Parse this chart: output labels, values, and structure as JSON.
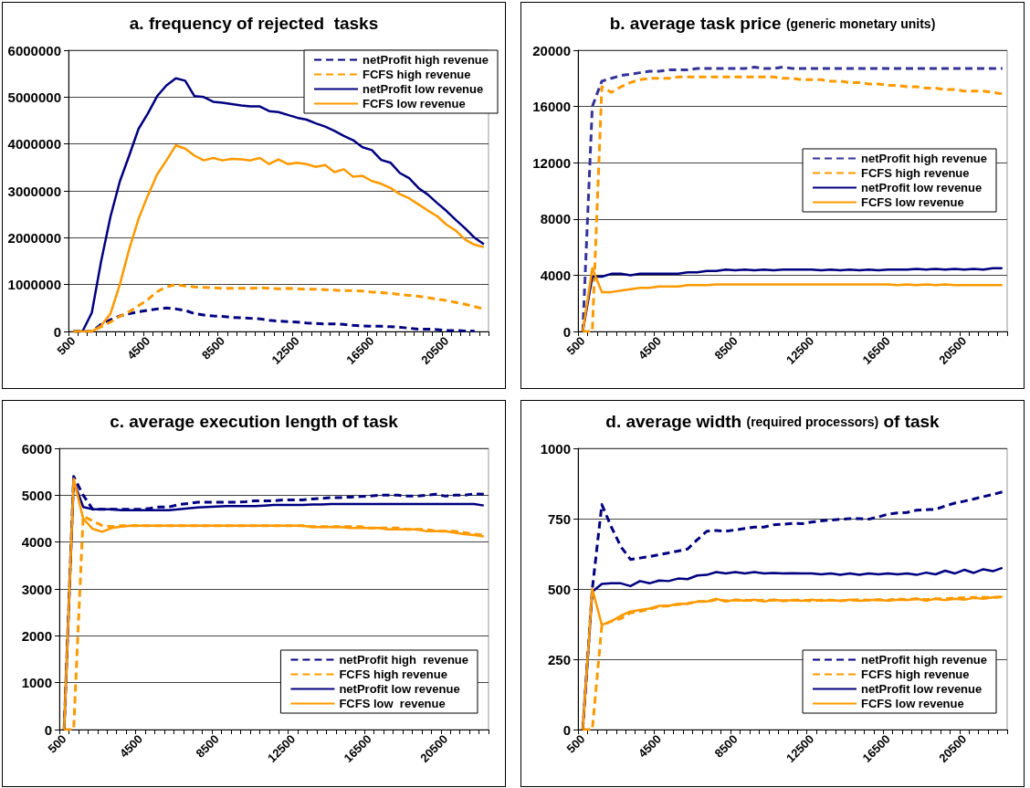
{
  "chart_data": [
    {
      "type": "line",
      "title": "a. frequency of rejected  tasks",
      "categories": [
        "500",
        null,
        null,
        null,
        null,
        null,
        null,
        null,
        "4500",
        null,
        null,
        null,
        null,
        null,
        null,
        null,
        "8500",
        null,
        null,
        null,
        null,
        null,
        null,
        null,
        "12500",
        null,
        null,
        null,
        null,
        null,
        null,
        null,
        "16500",
        null,
        null,
        null,
        null,
        null,
        null,
        null,
        "20500",
        null,
        null,
        null,
        null
      ],
      "ylim": [
        0,
        6000000
      ],
      "yticks": [
        0,
        1000000,
        2000000,
        3000000,
        4000000,
        5000000,
        6000000
      ],
      "grid": "y",
      "legend": "top right",
      "series": [
        {
          "name": "netProfit high revenue",
          "color": "#000080",
          "line_style": "dashed",
          "values": [
            0,
            0,
            0,
            150000,
            250000,
            330000,
            380000,
            420000,
            450000,
            480000,
            500000,
            480000,
            450000,
            380000,
            350000,
            330000,
            320000,
            300000,
            290000,
            280000,
            270000,
            240000,
            220000,
            210000,
            200000,
            180000,
            170000,
            160000,
            160000,
            150000,
            130000,
            120000,
            110000,
            110000,
            100000,
            90000,
            70000,
            50000,
            50000,
            40000,
            20000,
            20000,
            10000,
            10000,
            null
          ]
        },
        {
          "name": "FCFS high revenue",
          "color": "#ff9900",
          "line_style": "dashed",
          "values": [
            0,
            0,
            0,
            100000,
            200000,
            320000,
            420000,
            550000,
            680000,
            850000,
            950000,
            1000000,
            970000,
            950000,
            940000,
            930000,
            920000,
            920000,
            920000,
            920000,
            930000,
            920000,
            910000,
            920000,
            910000,
            900000,
            900000,
            890000,
            880000,
            870000,
            870000,
            860000,
            840000,
            830000,
            810000,
            790000,
            770000,
            750000,
            720000,
            690000,
            660000,
            620000,
            580000,
            530000,
            480000
          ]
        },
        {
          "name": "netProfit low revenue",
          "color": "#000080",
          "line_style": "solid",
          "values": [
            0,
            0,
            400000,
            1500000,
            2450000,
            3200000,
            3750000,
            4320000,
            4650000,
            5020000,
            5250000,
            5400000,
            5350000,
            5020000,
            5000000,
            4900000,
            4880000,
            4850000,
            4820000,
            4800000,
            4800000,
            4700000,
            4680000,
            4620000,
            4560000,
            4520000,
            4440000,
            4370000,
            4280000,
            4170000,
            4080000,
            3930000,
            3870000,
            3660000,
            3600000,
            3380000,
            3270000,
            3060000,
            2920000,
            2740000,
            2570000,
            2380000,
            2200000,
            2000000,
            1860000
          ]
        },
        {
          "name": "FCFS low revenue",
          "color": "#ff9900",
          "line_style": "solid",
          "values": [
            0,
            0,
            0,
            120000,
            380000,
            1000000,
            1750000,
            2400000,
            2900000,
            3350000,
            3650000,
            3970000,
            3900000,
            3750000,
            3650000,
            3700000,
            3650000,
            3680000,
            3670000,
            3650000,
            3700000,
            3570000,
            3670000,
            3570000,
            3600000,
            3570000,
            3510000,
            3550000,
            3400000,
            3460000,
            3300000,
            3320000,
            3210000,
            3150000,
            3060000,
            2930000,
            2840000,
            2710000,
            2580000,
            2460000,
            2280000,
            2150000,
            1960000,
            1850000,
            1800000
          ]
        }
      ]
    },
    {
      "type": "line",
      "title": "b. average task price (generic monetary units)",
      "categories": [
        "500",
        null,
        null,
        null,
        null,
        null,
        null,
        null,
        "4500",
        null,
        null,
        null,
        null,
        null,
        null,
        null,
        "8500",
        null,
        null,
        null,
        null,
        null,
        null,
        null,
        "12500",
        null,
        null,
        null,
        null,
        null,
        null,
        null,
        "16500",
        null,
        null,
        null,
        null,
        null,
        null,
        null,
        "20500",
        null,
        null,
        null,
        null
      ],
      "ylim": [
        0,
        20000
      ],
      "yticks": [
        0,
        4000,
        8000,
        12000,
        16000,
        20000
      ],
      "grid": "y",
      "legend": "right",
      "series": [
        {
          "name": "netProfit high revenue",
          "color": "#333399",
          "line_style": "dashed",
          "values": [
            0,
            16000,
            17800,
            18000,
            18200,
            18300,
            18400,
            18500,
            18500,
            18600,
            18600,
            18600,
            18700,
            18700,
            18700,
            18700,
            18700,
            18700,
            18800,
            18700,
            18700,
            18800,
            18700,
            18700,
            18700,
            18700,
            18700,
            18700,
            18700,
            18700,
            18700,
            18700,
            18700,
            18700,
            18700,
            18700,
            18700,
            18700,
            18700,
            18700,
            18700,
            18700,
            18700,
            18700,
            18700
          ]
        },
        {
          "name": "FCFS high revenue",
          "color": "#ff9900",
          "line_style": "dashed",
          "values": [
            0,
            0,
            17400,
            17000,
            17400,
            17700,
            17900,
            18000,
            18000,
            18000,
            18100,
            18100,
            18100,
            18100,
            18100,
            18100,
            18100,
            18100,
            18100,
            18100,
            18100,
            18000,
            18000,
            17900,
            17900,
            17900,
            17800,
            17800,
            17700,
            17700,
            17600,
            17600,
            17500,
            17500,
            17400,
            17400,
            17300,
            17300,
            17200,
            17200,
            17100,
            17100,
            17100,
            17000,
            16900
          ]
        },
        {
          "name": "netProfit low revenue",
          "color": "#000080",
          "line_style": "solid",
          "values": [
            0,
            3900,
            3900,
            4100,
            4100,
            4000,
            4100,
            4100,
            4100,
            4100,
            4100,
            4200,
            4200,
            4300,
            4300,
            4400,
            4350,
            4400,
            4350,
            4400,
            4350,
            4400,
            4400,
            4400,
            4400,
            4350,
            4400,
            4350,
            4400,
            4350,
            4400,
            4350,
            4400,
            4400,
            4400,
            4450,
            4400,
            4450,
            4400,
            4450,
            4400,
            4450,
            4400,
            4500,
            4500
          ]
        },
        {
          "name": "FCFS low revenue",
          "color": "#ff9900",
          "line_style": "solid",
          "values": [
            0,
            4500,
            2800,
            2800,
            2900,
            3000,
            3100,
            3100,
            3200,
            3200,
            3200,
            3300,
            3300,
            3300,
            3350,
            3350,
            3350,
            3350,
            3350,
            3350,
            3350,
            3350,
            3350,
            3350,
            3350,
            3350,
            3350,
            3350,
            3350,
            3350,
            3350,
            3350,
            3350,
            3300,
            3350,
            3300,
            3350,
            3300,
            3350,
            3300,
            3300,
            3300,
            3300,
            3300,
            3300
          ]
        }
      ]
    },
    {
      "type": "line",
      "title": "c. average execution length of task",
      "categories": [
        "500",
        null,
        null,
        null,
        null,
        null,
        null,
        null,
        "4500",
        null,
        null,
        null,
        null,
        null,
        null,
        null,
        "8500",
        null,
        null,
        null,
        null,
        null,
        null,
        null,
        "12500",
        null,
        null,
        null,
        null,
        null,
        null,
        null,
        "16500",
        null,
        null,
        null,
        null,
        null,
        null,
        null,
        "20500",
        null,
        null,
        null,
        null
      ],
      "ylim": [
        0,
        6000
      ],
      "yticks": [
        0,
        1000,
        2000,
        3000,
        4000,
        5000,
        6000
      ],
      "grid": "y",
      "legend": "bottom right",
      "series": [
        {
          "name": "netProfit high  revenue",
          "color": "#000080",
          "line_style": "dashed",
          "values": [
            0,
            5400,
            5000,
            4700,
            4700,
            4700,
            4700,
            4700,
            4700,
            4720,
            4750,
            4750,
            4800,
            4820,
            4850,
            4850,
            4850,
            4850,
            4850,
            4860,
            4880,
            4880,
            4880,
            4900,
            4900,
            4900,
            4920,
            4930,
            4950,
            4950,
            4960,
            4970,
            4980,
            5000,
            5000,
            5000,
            4980,
            4980,
            5000,
            5020,
            4980,
            5000,
            5000,
            5030,
            5020
          ]
        },
        {
          "name": "FCFS high revenue",
          "color": "#ff9900",
          "line_style": "dashed",
          "values": [
            0,
            0,
            4550,
            4450,
            4350,
            4330,
            4350,
            4350,
            4350,
            4350,
            4350,
            4350,
            4350,
            4350,
            4350,
            4350,
            4350,
            4350,
            4350,
            4350,
            4350,
            4350,
            4350,
            4350,
            4350,
            4350,
            4330,
            4330,
            4330,
            4330,
            4330,
            4330,
            4300,
            4300,
            4300,
            4300,
            4270,
            4270,
            4270,
            4230,
            4230,
            4230,
            4200,
            4170,
            4150
          ]
        },
        {
          "name": "netProfit low revenue",
          "color": "#000080",
          "line_style": "solid",
          "values": [
            0,
            5300,
            4750,
            4700,
            4700,
            4700,
            4680,
            4680,
            4680,
            4680,
            4680,
            4680,
            4700,
            4720,
            4740,
            4750,
            4760,
            4770,
            4770,
            4770,
            4770,
            4780,
            4790,
            4790,
            4790,
            4790,
            4800,
            4800,
            4810,
            4810,
            4810,
            4810,
            4810,
            4810,
            4810,
            4810,
            4810,
            4810,
            4810,
            4810,
            4810,
            4810,
            4810,
            4810,
            4780
          ]
        },
        {
          "name": "FCFS low  revenue",
          "color": "#ff9900",
          "line_style": "solid",
          "values": [
            0,
            5350,
            4500,
            4280,
            4220,
            4300,
            4330,
            4350,
            4350,
            4350,
            4350,
            4350,
            4350,
            4350,
            4350,
            4350,
            4350,
            4350,
            4350,
            4350,
            4350,
            4350,
            4350,
            4350,
            4350,
            4350,
            4320,
            4320,
            4320,
            4320,
            4300,
            4300,
            4300,
            4300,
            4270,
            4270,
            4270,
            4270,
            4230,
            4230,
            4230,
            4200,
            4170,
            4150,
            4120
          ]
        }
      ]
    },
    {
      "type": "line",
      "title": "d. average width (required processors) of task",
      "categories": [
        "500",
        null,
        null,
        null,
        null,
        null,
        null,
        null,
        "4500",
        null,
        null,
        null,
        null,
        null,
        null,
        null,
        "8500",
        null,
        null,
        null,
        null,
        null,
        null,
        null,
        "12500",
        null,
        null,
        null,
        null,
        null,
        null,
        null,
        "16500",
        null,
        null,
        null,
        null,
        null,
        null,
        null,
        "20500",
        null,
        null,
        null,
        null
      ],
      "ylim": [
        0,
        1000
      ],
      "yticks": [
        0,
        250,
        500,
        750,
        1000
      ],
      "grid": "y",
      "legend": "bottom right",
      "series": [
        {
          "name": "netProfit high revenue",
          "color": "#000080",
          "line_style": "dashed",
          "values": [
            0,
            500,
            800,
            720,
            650,
            605,
            610,
            615,
            622,
            628,
            635,
            642,
            675,
            705,
            708,
            705,
            710,
            715,
            720,
            720,
            728,
            730,
            733,
            732,
            738,
            742,
            745,
            748,
            750,
            750,
            748,
            756,
            766,
            770,
            772,
            780,
            782,
            783,
            795,
            805,
            812,
            820,
            828,
            836,
            845
          ]
        },
        {
          "name": "FCFS high revenue",
          "color": "#ff9900",
          "line_style": "dashed",
          "values": [
            0,
            0,
            370,
            385,
            395,
            415,
            420,
            428,
            438,
            440,
            445,
            448,
            455,
            455,
            462,
            458,
            460,
            460,
            458,
            460,
            460,
            458,
            460,
            460,
            458,
            460,
            460,
            458,
            460,
            462,
            460,
            462,
            460,
            465,
            462,
            465,
            462,
            465,
            465,
            468,
            468,
            470,
            470,
            470,
            472
          ]
        },
        {
          "name": "netProfit low revenue",
          "color": "#000080",
          "line_style": "solid",
          "values": [
            0,
            490,
            518,
            520,
            520,
            510,
            528,
            520,
            530,
            528,
            537,
            535,
            548,
            550,
            560,
            555,
            560,
            555,
            560,
            555,
            557,
            555,
            556,
            555,
            555,
            552,
            555,
            550,
            555,
            550,
            555,
            552,
            555,
            552,
            555,
            550,
            558,
            552,
            565,
            555,
            568,
            557,
            570,
            563,
            575
          ]
        },
        {
          "name": "FCFS low revenue",
          "color": "#ff9900",
          "line_style": "solid",
          "values": [
            0,
            500,
            372,
            385,
            405,
            420,
            425,
            430,
            440,
            440,
            447,
            447,
            455,
            455,
            465,
            455,
            462,
            458,
            462,
            455,
            462,
            458,
            460,
            458,
            462,
            458,
            460,
            458,
            462,
            458,
            460,
            462,
            458,
            462,
            460,
            465,
            458,
            465,
            460,
            465,
            462,
            468,
            465,
            470,
            472
          ]
        }
      ]
    }
  ]
}
